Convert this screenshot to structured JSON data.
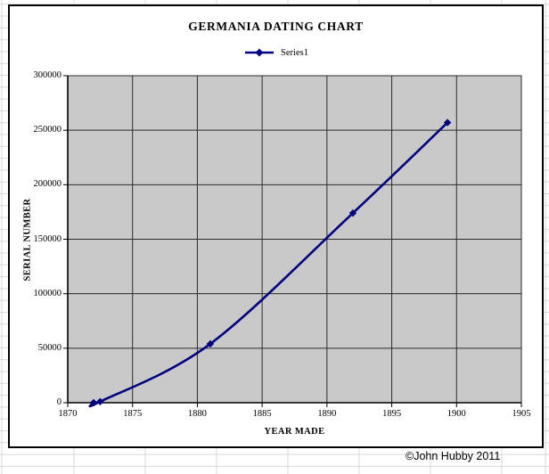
{
  "chart": {
    "title": "GERMANIA DATING CHART",
    "legend": {
      "series_label": "Series1"
    },
    "x_axis": {
      "title": "YEAR MADE",
      "ticks": [
        1870,
        1875,
        1880,
        1885,
        1890,
        1895,
        1900,
        1905
      ]
    },
    "y_axis": {
      "title": "SERIAL NUMBER",
      "ticks": [
        0,
        50000,
        100000,
        150000,
        200000,
        250000,
        300000
      ]
    },
    "colors": {
      "series": "#000080",
      "plot_bg": "#C9C9C9",
      "gridline": "#2b2b2b",
      "plot_border": "#7f7f7f",
      "axis": "#000000",
      "chart_border": "#000000",
      "sheet_gridline": "#d8d8d8"
    }
  },
  "chart_data": {
    "type": "line",
    "title": "GERMANIA DATING CHART",
    "xlabel": "YEAR MADE",
    "ylabel": "SERIAL NUMBER",
    "xlim": [
      1870,
      1905
    ],
    "ylim": [
      0,
      300000
    ],
    "grid": true,
    "legend_position": "top-center",
    "marker": "diamond",
    "line_style": "smooth",
    "series": [
      {
        "name": "Series1",
        "points": [
          [
            1872,
            0
          ],
          [
            1872.5,
            1000
          ],
          [
            1881,
            54000
          ],
          [
            1892,
            174000
          ],
          [
            1899.3,
            257000
          ]
        ]
      }
    ]
  },
  "footer": {
    "copyright": "©John Hubby 2011"
  }
}
